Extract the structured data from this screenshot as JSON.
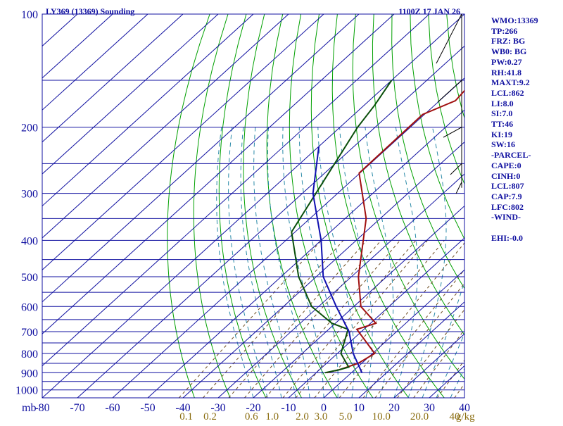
{
  "chart_data": {
    "type": "line",
    "title": "LY369 (13369) Sounding",
    "time": "1100Z 17 JAN 26",
    "pressure_ticks": [
      "100",
      "200",
      "300",
      "400",
      "500",
      "600",
      "700",
      "800",
      "900",
      "1000"
    ],
    "temp_ticks": [
      "-80",
      "-70",
      "-60",
      "-50",
      "-40",
      "-30",
      "-20",
      "-10",
      "0",
      "10",
      "20",
      "30",
      "40"
    ],
    "pressure_unit": "mb",
    "mixing_ratio_ticks": [
      "0.1",
      "0.2",
      "0.6",
      "1.0",
      "2.0",
      "3.0",
      "5.0",
      "10.0",
      "20.0",
      "40"
    ],
    "mixing_ratio_unit": "g/kg",
    "pressure_range_mb": [
      100,
      1050
    ],
    "temperature_range_c": [
      -80,
      40
    ],
    "series": [
      {
        "values": [
          [
            100,
            -60.2
          ],
          [
            170,
            -55.5
          ],
          [
            185,
            -60.5
          ],
          [
            265,
            -60.2
          ],
          [
            350,
            -44
          ],
          [
            500,
            -28
          ],
          [
            600,
            -18
          ],
          [
            665,
            -8.5
          ],
          [
            690,
            -12
          ],
          [
            800,
            0.6
          ],
          [
            850,
            -1
          ],
          [
            885,
            -4.5
          ],
          [
            890,
            -5.5
          ],
          [
            900,
            -7
          ]
        ]
      },
      {
        "values": [
          [
            150,
            -80
          ],
          [
            175,
            -77
          ],
          [
            200,
            -75
          ],
          [
            380,
            -61
          ],
          [
            500,
            -45
          ],
          [
            600,
            -32
          ],
          [
            665,
            -21
          ],
          [
            690,
            -14.5
          ],
          [
            800,
            -9
          ],
          [
            870,
            -2.5
          ],
          [
            885,
            -4.5
          ],
          [
            900,
            -7.5
          ]
        ]
      },
      {
        "values": [
          [
            225,
            -80
          ],
          [
            300,
            -67
          ],
          [
            400,
            -50
          ],
          [
            500,
            -38
          ],
          [
            600,
            -25
          ],
          [
            700,
            -13.5
          ],
          [
            800,
            -5.5
          ],
          [
            900,
            3
          ]
        ]
      }
    ],
    "colors": {
      "temperature": "#a01010",
      "dewpoint": "#0a4f0a",
      "parcel": "#1010b0",
      "isobar": "#1010a0",
      "isotherm": "#1010a0",
      "dry_adiabat": "#00a000",
      "moist_adiabat": "#2a8aa8",
      "mixing_ratio": "#6b4b1f"
    }
  },
  "stats": {
    "wmo": "WMO:13369",
    "tp": "TP:266",
    "frz": "FRZ: BG",
    "wb0": "WB0: BG",
    "pw": "PW:0.27",
    "rh": "RH:41.8",
    "maxt": "MAXT:9.2",
    "lcl": "LCL:862",
    "li": "LI:8.0",
    "si": "SI:7.0",
    "tt": "TT:46",
    "ki": "KI:19",
    "sw": "SW:16",
    "parcel_header": "-PARCEL-",
    "cape": "CAPE:0",
    "cinh": "CINH:0",
    "parcel_lcl": "LCL:807",
    "cap": "CAP:7.9",
    "lfc": "LFC:802",
    "wind_header": "-WIND-",
    "ehi": "EHI:-0.0"
  }
}
